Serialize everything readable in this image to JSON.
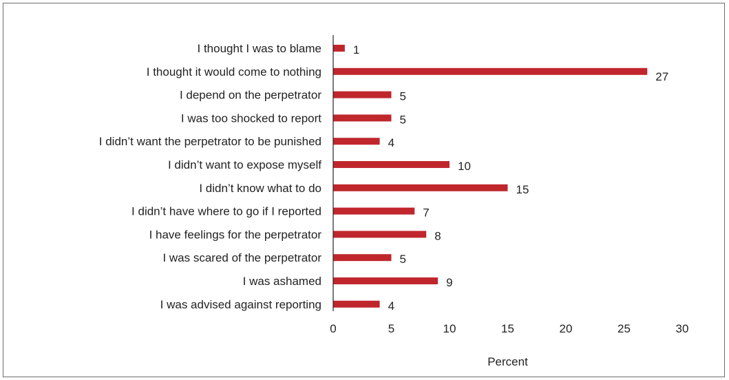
{
  "chart_data": {
    "type": "bar",
    "orientation": "horizontal",
    "categories": [
      "I thought I was to blame",
      "I thought it would come to nothing",
      "I depend on the perpetrator",
      "I was too shocked to report",
      "I didn’t want the perpetrator to be punished",
      "I didn’t want to expose myself",
      "I didn’t know what to do",
      "I didn’t have where to go if I reported",
      "I have feelings for the perpetrator",
      "I was scared of the perpetrator",
      "I was ashamed",
      "I was advised against reporting"
    ],
    "values": [
      1,
      27,
      5,
      5,
      4,
      10,
      15,
      7,
      8,
      5,
      9,
      4
    ],
    "data_labels": [
      "1",
      "27",
      "5",
      "5",
      "4",
      "10",
      "15",
      "7",
      "8",
      "5",
      "9",
      "4"
    ],
    "xlabel": "Percent",
    "xlim": [
      0,
      30
    ],
    "xticks": [
      "0",
      "5",
      "10",
      "15",
      "20",
      "25",
      "30"
    ],
    "grid": false,
    "legend": "none",
    "bar_color": "#c0272d",
    "axis_color": "#222222"
  }
}
